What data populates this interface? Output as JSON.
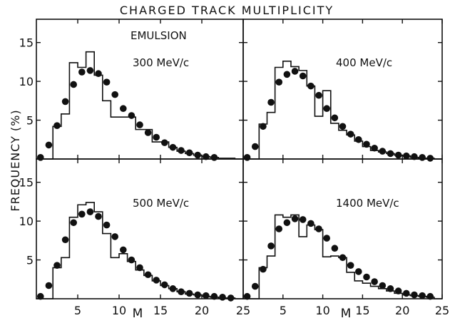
{
  "figure": {
    "title": "CHARGED TRACK MULTIPLICITY",
    "ylabel": "FREQUENCY (%)",
    "xlabel": "M",
    "annotation": "EMULSION"
  },
  "chart_data": [
    {
      "type": "bar",
      "panel": "top-left",
      "label": "300 MeV/c",
      "histogram": {
        "edges": [
          0,
          1,
          2,
          3,
          4,
          5,
          6,
          7,
          8,
          9,
          10,
          11,
          12,
          13,
          14,
          15,
          16,
          17,
          18,
          19,
          20,
          21,
          22,
          23,
          24,
          25
        ],
        "values": [
          0,
          0,
          4.2,
          5.8,
          12.4,
          11.8,
          13.8,
          10.8,
          7.5,
          5.4,
          5.4,
          5.4,
          3.8,
          3.8,
          2.2,
          2.2,
          1.5,
          1.0,
          0.7,
          0.5,
          0.3,
          0.2,
          0.1,
          0.1,
          0
        ]
      },
      "points": {
        "x": [
          0.5,
          1.5,
          2.5,
          3.5,
          4.5,
          5.5,
          6.5,
          7.5,
          8.5,
          9.5,
          10.5,
          11.5,
          12.5,
          13.5,
          14.5,
          15.5,
          16.5,
          17.5,
          18.5,
          19.5,
          20.5,
          21.5
        ],
        "y": [
          0.2,
          1.8,
          4.3,
          7.4,
          9.6,
          11.2,
          11.4,
          11.0,
          9.9,
          8.3,
          6.5,
          5.6,
          4.4,
          3.4,
          2.8,
          2.1,
          1.5,
          1.1,
          0.8,
          0.5,
          0.3,
          0.2
        ]
      },
      "xlim": [
        0,
        25
      ],
      "ylim": [
        0,
        18
      ]
    },
    {
      "type": "bar",
      "panel": "top-right",
      "label": "400 MeV/c",
      "histogram": {
        "edges": [
          0,
          1,
          2,
          3,
          4,
          5,
          6,
          7,
          8,
          9,
          10,
          11,
          12,
          13,
          14,
          15,
          16,
          17,
          18,
          19,
          20,
          21,
          22,
          23,
          24,
          25
        ],
        "values": [
          0,
          0,
          4.5,
          6.0,
          11.8,
          12.6,
          11.9,
          11.4,
          9.4,
          5.5,
          8.8,
          4.6,
          3.7,
          3.1,
          2.3,
          1.6,
          1.1,
          0.9,
          0.7,
          0.5,
          0.4,
          0.2,
          0.1,
          0.1,
          0
        ]
      },
      "points": {
        "x": [
          0.5,
          1.5,
          2.5,
          3.5,
          4.5,
          5.5,
          6.5,
          7.5,
          8.5,
          9.5,
          10.5,
          11.5,
          12.5,
          13.5,
          14.5,
          15.5,
          16.5,
          17.5,
          18.5,
          19.5,
          20.5,
          21.5,
          22.5,
          23.5
        ],
        "y": [
          0.2,
          1.6,
          4.2,
          7.3,
          9.9,
          10.9,
          11.3,
          10.7,
          9.4,
          8.2,
          6.5,
          5.3,
          4.2,
          3.2,
          2.5,
          1.9,
          1.4,
          1.0,
          0.7,
          0.5,
          0.4,
          0.3,
          0.2,
          0.1
        ]
      },
      "xlim": [
        0,
        25
      ],
      "ylim": [
        0,
        18
      ]
    },
    {
      "type": "bar",
      "panel": "bottom-left",
      "label": "500 MeV/c",
      "histogram": {
        "edges": [
          0,
          1,
          2,
          3,
          4,
          5,
          6,
          7,
          8,
          9,
          10,
          11,
          12,
          13,
          14,
          15,
          16,
          17,
          18,
          19,
          20,
          21,
          22,
          23,
          24,
          25
        ],
        "values": [
          0,
          0,
          4.0,
          5.3,
          10.5,
          12.1,
          12.4,
          11.2,
          8.4,
          5.3,
          5.8,
          4.8,
          3.7,
          3.0,
          2.3,
          1.7,
          1.3,
          0.9,
          0.6,
          0.5,
          0.3,
          0.2,
          0.1,
          0.1,
          0
        ]
      },
      "points": {
        "x": [
          0.5,
          1.5,
          2.5,
          3.5,
          4.5,
          5.5,
          6.5,
          7.5,
          8.5,
          9.5,
          10.5,
          11.5,
          12.5,
          13.5,
          14.5,
          15.5,
          16.5,
          17.5,
          18.5,
          19.5,
          20.5,
          21.5,
          22.5,
          23.5
        ],
        "y": [
          0.3,
          1.7,
          4.3,
          7.6,
          9.8,
          10.9,
          11.2,
          10.6,
          9.5,
          8.0,
          6.3,
          5.0,
          4.0,
          3.1,
          2.4,
          1.8,
          1.3,
          0.9,
          0.7,
          0.5,
          0.4,
          0.3,
          0.2,
          0.1
        ]
      },
      "xlim": [
        0,
        25
      ],
      "ylim": [
        0,
        18
      ]
    },
    {
      "type": "bar",
      "panel": "bottom-right",
      "label": "1400 MeV/c",
      "histogram": {
        "edges": [
          0,
          1,
          2,
          3,
          4,
          5,
          6,
          7,
          8,
          9,
          10,
          11,
          12,
          13,
          14,
          15,
          16,
          17,
          18,
          19,
          20,
          21,
          22,
          23,
          24,
          25
        ],
        "values": [
          0,
          0,
          4.0,
          5.5,
          10.8,
          10.5,
          10.8,
          8.0,
          9.5,
          8.9,
          5.4,
          5.5,
          5.3,
          3.4,
          2.3,
          2.0,
          1.6,
          1.3,
          1.0,
          0.7,
          0.5,
          0.4,
          0.3,
          0.2,
          0
        ]
      },
      "points": {
        "x": [
          0.5,
          1.5,
          2.5,
          3.5,
          4.5,
          5.5,
          6.5,
          7.5,
          8.5,
          9.5,
          10.5,
          11.5,
          12.5,
          13.5,
          14.5,
          15.5,
          16.5,
          17.5,
          18.5,
          19.5,
          20.5,
          21.5,
          22.5,
          23.5
        ],
        "y": [
          0.3,
          1.6,
          3.8,
          6.8,
          9.0,
          9.8,
          10.3,
          10.2,
          9.7,
          9.0,
          7.8,
          6.5,
          5.3,
          4.3,
          3.5,
          2.8,
          2.2,
          1.7,
          1.3,
          1.0,
          0.7,
          0.5,
          0.4,
          0.3
        ]
      },
      "xlim": [
        0,
        25
      ],
      "ylim": [
        0,
        18
      ]
    }
  ],
  "axes": {
    "y_ticks": [
      5,
      10,
      15
    ],
    "x_ticks": [
      5,
      10,
      15,
      20,
      25
    ]
  }
}
